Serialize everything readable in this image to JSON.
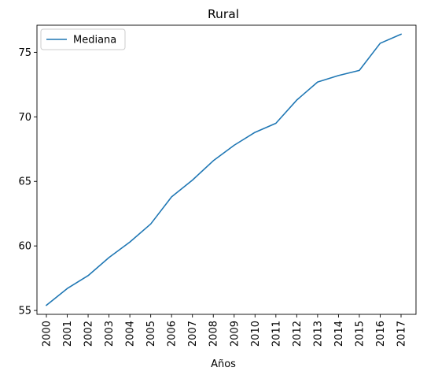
{
  "chart_data": {
    "type": "line",
    "title": "Rural",
    "xlabel": "Años",
    "ylabel": "",
    "categories": [
      "2000",
      "2001",
      "2002",
      "2003",
      "2004",
      "2005",
      "2006",
      "2007",
      "2008",
      "2009",
      "2010",
      "2011",
      "2012",
      "2013",
      "2014",
      "2015",
      "2016",
      "2017"
    ],
    "ylim": [
      54.7,
      77.1
    ],
    "yticks": [
      55,
      60,
      65,
      70,
      75
    ],
    "grid": false,
    "legend_position": "upper-left",
    "series": [
      {
        "name": "Mediana",
        "color": "#1f77b4",
        "values": [
          55.4,
          56.7,
          57.7,
          59.1,
          60.3,
          61.7,
          63.8,
          65.1,
          66.6,
          67.8,
          68.8,
          69.5,
          71.3,
          72.7,
          73.2,
          73.6,
          75.7,
          76.4
        ]
      }
    ]
  }
}
